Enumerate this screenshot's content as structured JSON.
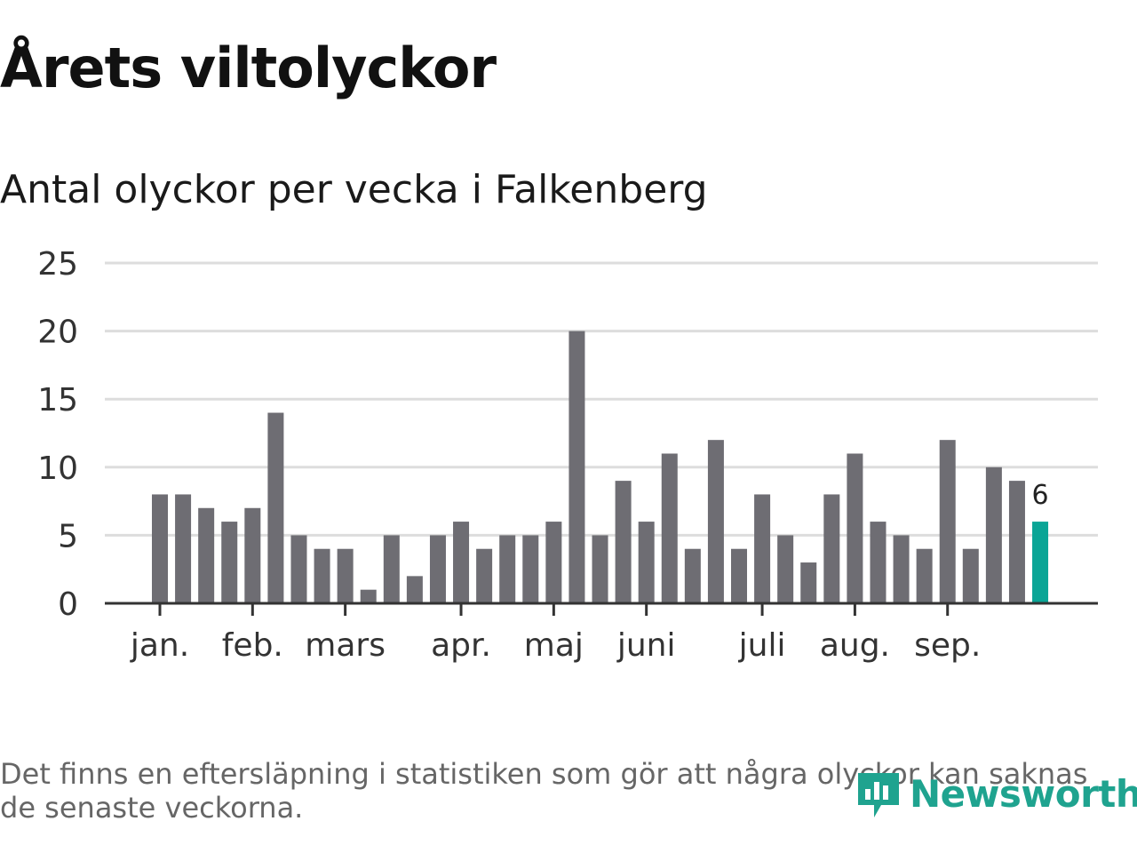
{
  "title": "Årets viltolyckor",
  "subtitle": "Antal olyckor per vecka i Falkenberg",
  "footnote": "Det finns en eftersläpning i statistiken som gör att några olyckor kan saknas de senaste veckorna.",
  "brand": {
    "name": "Newsworthy",
    "icon": "newsworthy-logo-icon"
  },
  "colors": {
    "bar": "#6e6d73",
    "highlight": "#0aa596",
    "grid": "#dddddd",
    "axis": "#333333",
    "text": "#333333",
    "brand": "#1fa38f"
  },
  "chart_data": {
    "type": "bar",
    "title": "Antal olyckor per vecka i Falkenberg",
    "xlabel": "",
    "ylabel": "",
    "ylim": [
      0,
      25
    ],
    "yticks": [
      0,
      5,
      10,
      15,
      20,
      25
    ],
    "grid": true,
    "values": [
      8,
      8,
      7,
      6,
      7,
      14,
      5,
      4,
      4,
      1,
      5,
      2,
      5,
      6,
      4,
      5,
      5,
      6,
      20,
      5,
      9,
      6,
      11,
      4,
      12,
      4,
      8,
      5,
      3,
      8,
      11,
      6,
      5,
      4,
      12,
      4,
      10,
      9,
      6
    ],
    "highlight_index": 38,
    "highlight_label": "6",
    "month_ticks": [
      {
        "label": "jan.",
        "pos": 0.0
      },
      {
        "label": "feb.",
        "pos": 4.0
      },
      {
        "label": "mars",
        "pos": 8.0
      },
      {
        "label": "apr.",
        "pos": 13.0
      },
      {
        "label": "maj",
        "pos": 17.0
      },
      {
        "label": "juni",
        "pos": 21.0
      },
      {
        "label": "juli",
        "pos": 26.0
      },
      {
        "label": "aug.",
        "pos": 30.0
      },
      {
        "label": "sep.",
        "pos": 34.0
      }
    ]
  }
}
